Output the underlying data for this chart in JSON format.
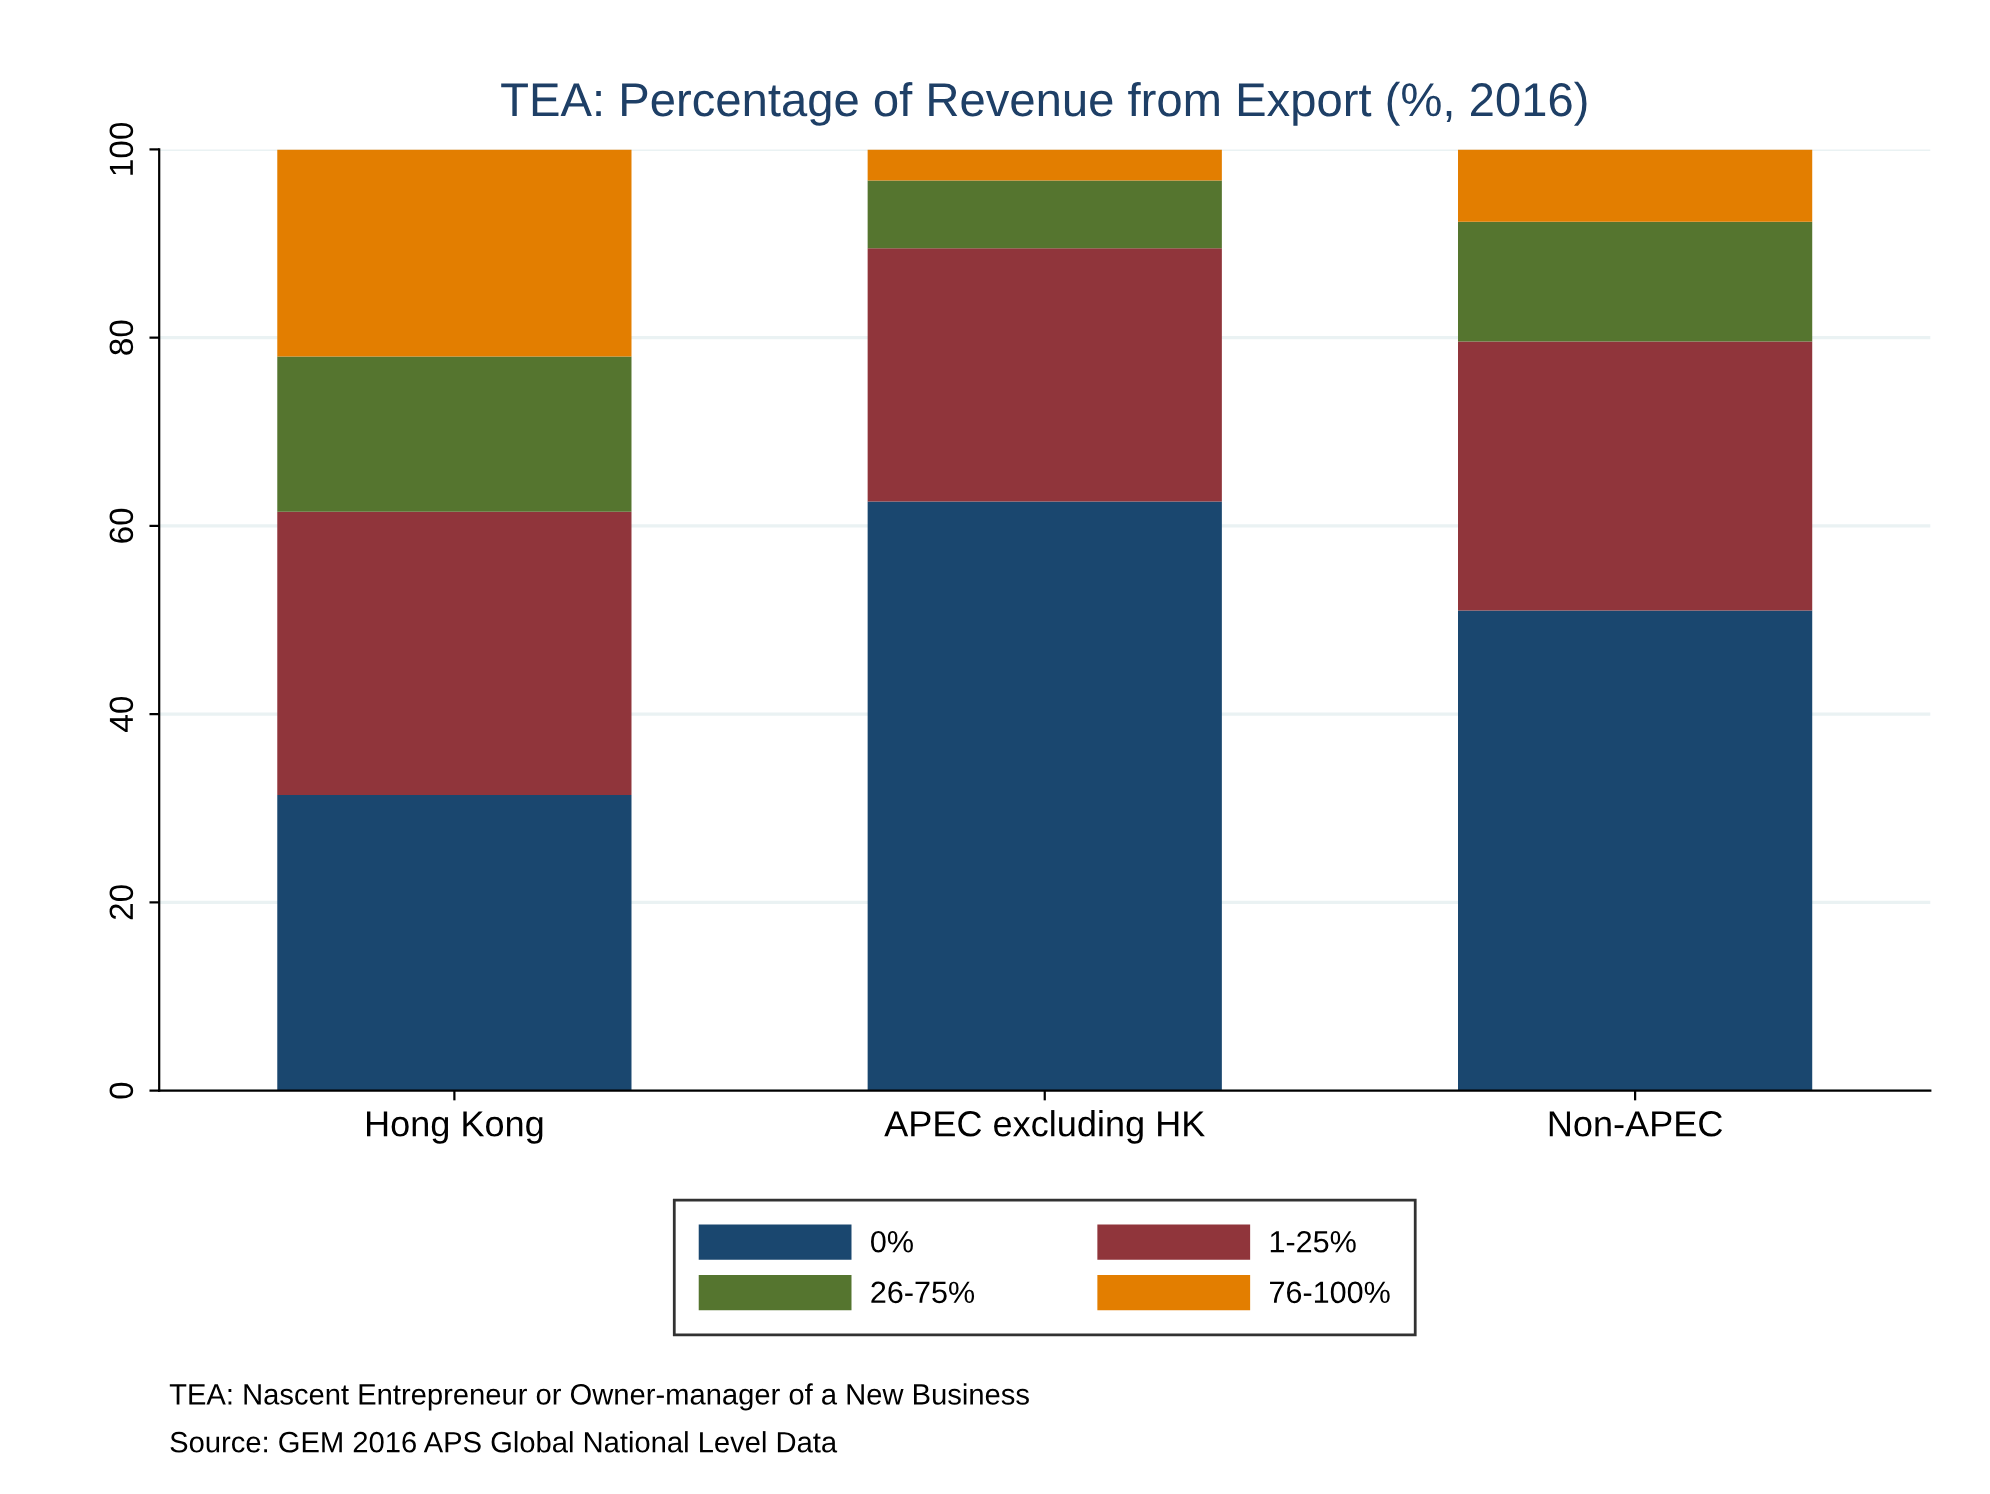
{
  "chart_data": {
    "type": "bar",
    "title": "TEA: Percentage of Revenue from Export (%, 2016)",
    "categories": [
      "Hong Kong",
      "APEC excluding HK",
      "Non-APEC"
    ],
    "stacked": true,
    "series": [
      {
        "name": "0%",
        "color": "#1a476f",
        "values": [
          31.4,
          62.6,
          51.0
        ]
      },
      {
        "name": "1-25%",
        "color": "#90353b",
        "values": [
          30.1,
          26.9,
          28.6
        ]
      },
      {
        "name": "26-75%",
        "color": "#55752f",
        "values": [
          16.5,
          7.2,
          12.7
        ]
      },
      {
        "name": "76-100%",
        "color": "#e37e00",
        "values": [
          22.0,
          3.3,
          7.7
        ]
      }
    ],
    "ylim": [
      0,
      100
    ],
    "yticks": [
      0,
      20,
      40,
      60,
      80,
      100
    ],
    "grid": "y",
    "legend": "bottom",
    "annotations": [
      "TEA: Nascent Entrepreneur or Owner-manager of a New Business",
      "Source: GEM 2016 APS Global National Level Data"
    ]
  }
}
